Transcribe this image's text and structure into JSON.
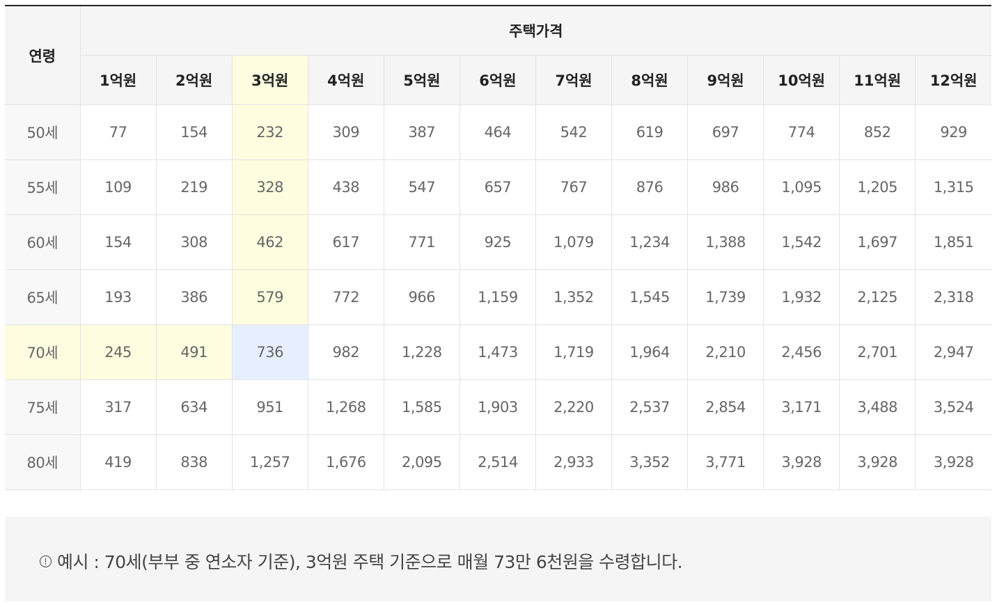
{
  "table": {
    "age_header": "연령",
    "group_header": "주택가격",
    "price_headers": [
      "1억원",
      "2억원",
      "3억원",
      "4억원",
      "5억원",
      "6억원",
      "7억원",
      "8억원",
      "9억원",
      "10억원",
      "11억원",
      "12억원"
    ],
    "rows": [
      {
        "age": "50세",
        "values": [
          "77",
          "154",
          "232",
          "309",
          "387",
          "464",
          "542",
          "619",
          "697",
          "774",
          "852",
          "929"
        ]
      },
      {
        "age": "55세",
        "values": [
          "109",
          "219",
          "328",
          "438",
          "547",
          "657",
          "767",
          "876",
          "986",
          "1,095",
          "1,205",
          "1,315"
        ]
      },
      {
        "age": "60세",
        "values": [
          "154",
          "308",
          "462",
          "617",
          "771",
          "925",
          "1,079",
          "1,234",
          "1,388",
          "1,542",
          "1,697",
          "1,851"
        ]
      },
      {
        "age": "65세",
        "values": [
          "193",
          "386",
          "579",
          "772",
          "966",
          "1,159",
          "1,352",
          "1,545",
          "1,739",
          "1,932",
          "2,125",
          "2,318"
        ]
      },
      {
        "age": "70세",
        "values": [
          "245",
          "491",
          "736",
          "982",
          "1,228",
          "1,473",
          "1,719",
          "1,964",
          "2,210",
          "2,456",
          "2,701",
          "2,947"
        ]
      },
      {
        "age": "75세",
        "values": [
          "317",
          "634",
          "951",
          "1,268",
          "1,585",
          "1,903",
          "2,220",
          "2,537",
          "2,854",
          "3,171",
          "3,488",
          "3,524"
        ]
      },
      {
        "age": "80세",
        "values": [
          "419",
          "838",
          "1,257",
          "1,676",
          "2,095",
          "2,514",
          "2,933",
          "3,352",
          "3,771",
          "3,928",
          "3,928",
          "3,928"
        ]
      }
    ]
  },
  "highlight": {
    "column": "3억원",
    "row": "70세",
    "highlight_color": "#fefde0",
    "intersection_color": "#e6efff"
  },
  "note": {
    "icon": "info-circle-icon",
    "text": "예시 : 70세(부부 중 연소자 기준), 3억원 주택 기준으로 매월 73만 6천원을 수령합니다."
  }
}
